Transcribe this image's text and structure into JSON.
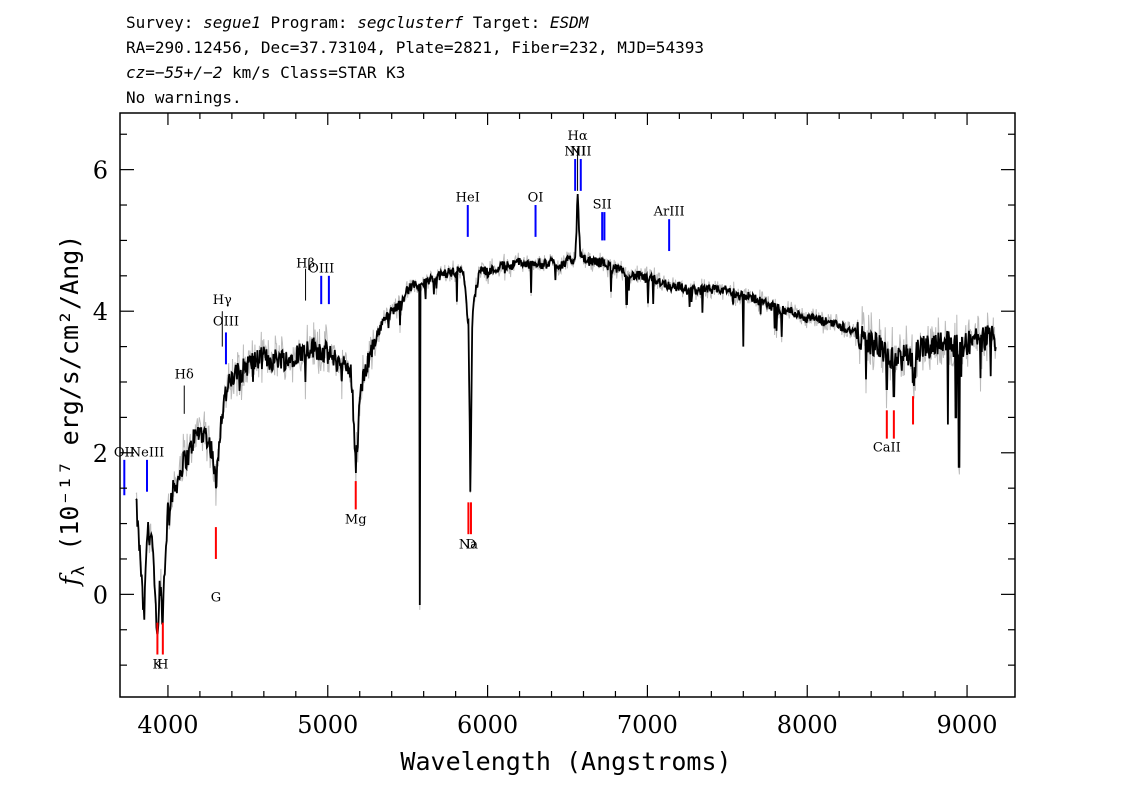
{
  "header": {
    "line1": {
      "survey_label": "Survey: ",
      "survey": "segue1",
      "program_label": " Program: ",
      "program": "segclusterf",
      "target_label": " Target: ",
      "target": "ESDM"
    },
    "line2": "RA=290.12456, Dec=37.73104, Plate=2821, Fiber=232, MJD=54393",
    "line3": {
      "cz_label": "cz",
      "cz_value": "=−55+/−2",
      "cz_rest": " km/s Class=STAR K3"
    },
    "line4": "No warnings."
  },
  "chart_data": {
    "type": "line",
    "title": "",
    "xlabel": "Wavelength (Angstroms)",
    "ylabel": "fλ (10⁻¹⁷ erg/s/cm²/Ang)",
    "xlim": [
      3700,
      9300
    ],
    "ylim": [
      -1.45,
      6.8
    ],
    "xticks": [
      4000,
      5000,
      6000,
      7000,
      8000,
      9000
    ],
    "yticks": [
      0,
      2,
      4,
      6
    ],
    "colors": {
      "flux": "#000000",
      "error": "#bbbbbb",
      "emission": "#0000ff",
      "absorption": "#ff0000",
      "balmer": "#000000"
    },
    "series": [
      {
        "points": [
          [
            3800,
            1.3
          ],
          [
            3830,
            0.4
          ],
          [
            3850,
            -0.4
          ],
          [
            3870,
            0.9
          ],
          [
            3900,
            0.8
          ],
          [
            3920,
            -0.1
          ],
          [
            3935,
            -0.6
          ],
          [
            3950,
            0.2
          ],
          [
            3965,
            -0.3
          ],
          [
            3985,
            0.6
          ],
          [
            4000,
            1.2
          ],
          [
            4030,
            1.45
          ],
          [
            4060,
            1.6
          ],
          [
            4100,
            1.9
          ],
          [
            4130,
            1.95
          ],
          [
            4160,
            2.2
          ],
          [
            4200,
            2.3
          ],
          [
            4240,
            2.25
          ],
          [
            4280,
            2.0
          ],
          [
            4300,
            1.5
          ],
          [
            4320,
            2.2
          ],
          [
            4350,
            2.75
          ],
          [
            4380,
            2.95
          ],
          [
            4420,
            3.1
          ],
          [
            4460,
            3.15
          ],
          [
            4500,
            3.25
          ],
          [
            4550,
            3.3
          ],
          [
            4600,
            3.35
          ],
          [
            4650,
            3.3
          ],
          [
            4700,
            3.35
          ],
          [
            4750,
            3.3
          ],
          [
            4800,
            3.4
          ],
          [
            4861,
            3.45
          ],
          [
            4900,
            3.5
          ],
          [
            4950,
            3.45
          ],
          [
            5000,
            3.4
          ],
          [
            5050,
            3.3
          ],
          [
            5100,
            3.25
          ],
          [
            5150,
            3.1
          ],
          [
            5175,
            1.8
          ],
          [
            5200,
            2.8
          ],
          [
            5250,
            3.3
          ],
          [
            5300,
            3.6
          ],
          [
            5350,
            3.9
          ],
          [
            5400,
            4.0
          ],
          [
            5450,
            4.1
          ],
          [
            5500,
            4.3
          ],
          [
            5550,
            4.4
          ],
          [
            5577,
            4.3
          ],
          [
            5600,
            4.4
          ],
          [
            5650,
            4.45
          ],
          [
            5700,
            4.5
          ],
          [
            5750,
            4.55
          ],
          [
            5800,
            4.55
          ],
          [
            5850,
            4.6
          ],
          [
            5880,
            3.8
          ],
          [
            5893,
            1.5
          ],
          [
            5905,
            4.0
          ],
          [
            5950,
            4.6
          ],
          [
            6000,
            4.55
          ],
          [
            6050,
            4.6
          ],
          [
            6100,
            4.65
          ],
          [
            6150,
            4.65
          ],
          [
            6200,
            4.7
          ],
          [
            6250,
            4.65
          ],
          [
            6300,
            4.7
          ],
          [
            6350,
            4.65
          ],
          [
            6400,
            4.7
          ],
          [
            6450,
            4.65
          ],
          [
            6500,
            4.7
          ],
          [
            6550,
            4.75
          ],
          [
            6563,
            5.7
          ],
          [
            6580,
            4.75
          ],
          [
            6650,
            4.7
          ],
          [
            6700,
            4.7
          ],
          [
            6750,
            4.65
          ],
          [
            6800,
            4.6
          ],
          [
            6850,
            4.55
          ],
          [
            6900,
            4.5
          ],
          [
            6950,
            4.5
          ],
          [
            7000,
            4.45
          ],
          [
            7050,
            4.45
          ],
          [
            7100,
            4.4
          ],
          [
            7150,
            4.35
          ],
          [
            7200,
            4.35
          ],
          [
            7250,
            4.3
          ],
          [
            7300,
            4.3
          ],
          [
            7350,
            4.3
          ],
          [
            7400,
            4.3
          ],
          [
            7450,
            4.3
          ],
          [
            7500,
            4.3
          ],
          [
            7550,
            4.25
          ],
          [
            7600,
            4.2
          ],
          [
            7650,
            4.2
          ],
          [
            7700,
            4.15
          ],
          [
            7750,
            4.1
          ],
          [
            7800,
            4.05
          ],
          [
            7850,
            4.0
          ],
          [
            7900,
            4.0
          ],
          [
            7950,
            3.95
          ],
          [
            8000,
            3.9
          ],
          [
            8050,
            3.9
          ],
          [
            8100,
            3.85
          ],
          [
            8150,
            3.85
          ],
          [
            8200,
            3.8
          ],
          [
            8250,
            3.75
          ],
          [
            8300,
            3.7
          ],
          [
            8350,
            3.6
          ],
          [
            8400,
            3.55
          ],
          [
            8450,
            3.5
          ],
          [
            8500,
            3.4
          ],
          [
            8550,
            3.3
          ],
          [
            8600,
            3.4
          ],
          [
            8650,
            3.3
          ],
          [
            8700,
            3.45
          ],
          [
            8750,
            3.5
          ],
          [
            8800,
            3.55
          ],
          [
            8850,
            3.6
          ],
          [
            8900,
            3.55
          ],
          [
            8950,
            3.5
          ],
          [
            9000,
            3.55
          ],
          [
            9050,
            3.6
          ],
          [
            9100,
            3.6
          ],
          [
            9150,
            3.65
          ],
          [
            9180,
            3.6
          ]
        ],
        "dips": [
          [
            5577,
            -0.15
          ],
          [
            5893,
            1.45
          ],
          [
            4300,
            1.5
          ],
          [
            3934,
            -0.55
          ],
          [
            3968,
            -0.4
          ],
          [
            8498,
            2.9
          ],
          [
            8542,
            2.8
          ],
          [
            8662,
            3.0
          ],
          [
            8950,
            1.8
          ],
          [
            8880,
            2.4
          ],
          [
            4861,
            3.0
          ],
          [
            7600,
            3.5
          ],
          [
            6870,
            4.1
          ],
          [
            8930,
            2.5
          ]
        ]
      }
    ],
    "line_markers": [
      {
        "label": "OII",
        "display": "OII",
        "wave": 3727,
        "kind": "emission",
        "y0": 1.4,
        "y1": 1.9,
        "label_y": 1.95
      },
      {
        "label": "NeIII",
        "display": "NeIII",
        "wave": 3869,
        "kind": "emission",
        "y0": 1.45,
        "y1": 1.9,
        "label_y": 1.95
      },
      {
        "label": "Hdelta",
        "display": "Hδ",
        "wave": 4102,
        "kind": "balmer",
        "y0": 2.55,
        "y1": 2.95,
        "label_y": 3.05
      },
      {
        "label": "Hgamma",
        "display": "Hγ",
        "wave": 4340,
        "kind": "balmer",
        "y0": 3.5,
        "y1": 4.0,
        "label_y": 4.1
      },
      {
        "label": "OIII",
        "display": "OIII",
        "wave": 4363,
        "kind": "emission",
        "y0": 3.25,
        "y1": 3.7,
        "label_y": 3.8
      },
      {
        "label": "Hbeta",
        "display": "Hβ",
        "wave": 4861,
        "kind": "balmer",
        "y0": 4.15,
        "y1": 4.6,
        "label_y": 4.62
      },
      {
        "label": "OIII",
        "display": "OIII",
        "wave": 4959,
        "kind": "emission",
        "y0": 4.1,
        "y1": 4.5,
        "label_y": 4.55
      },
      {
        "label": "OIII",
        "display": "",
        "wave": 5007,
        "kind": "emission",
        "y0": 4.1,
        "y1": 4.5,
        "label_y": 4.55
      },
      {
        "label": "HeI",
        "display": "HeI",
        "wave": 5876,
        "kind": "emission",
        "y0": 5.05,
        "y1": 5.5,
        "label_y": 5.55
      },
      {
        "label": "OI",
        "display": "OI",
        "wave": 6300,
        "kind": "emission",
        "y0": 5.05,
        "y1": 5.5,
        "label_y": 5.55
      },
      {
        "label": "NII",
        "display": "NII",
        "wave": 6548,
        "kind": "emission",
        "y0": 5.7,
        "y1": 6.15,
        "label_y": 6.2
      },
      {
        "label": "Halpha",
        "display": "Hα",
        "wave": 6563,
        "kind": "balmer",
        "y0": 5.7,
        "y1": 6.3,
        "label_y": 6.42
      },
      {
        "label": "NII",
        "display": "NII",
        "wave": 6583,
        "kind": "emission",
        "y0": 5.7,
        "y1": 6.15,
        "label_y": 6.2
      },
      {
        "label": "SII",
        "display": "SII",
        "wave": 6717,
        "kind": "emission",
        "y0": 5.0,
        "y1": 5.4,
        "label_y": 5.45
      },
      {
        "label": "SII",
        "display": "",
        "wave": 6731,
        "kind": "emission",
        "y0": 5.0,
        "y1": 5.4,
        "label_y": 5.45
      },
      {
        "label": "ArIII",
        "display": "ArIII",
        "wave": 7136,
        "kind": "emission",
        "y0": 4.85,
        "y1": 5.3,
        "label_y": 5.35
      },
      {
        "label": "K",
        "display": "K",
        "wave": 3934,
        "kind": "absorption",
        "y0": -0.85,
        "y1": -0.4,
        "label_y": -1.05
      },
      {
        "label": "H",
        "display": "H",
        "wave": 3968,
        "kind": "absorption",
        "y0": -0.85,
        "y1": -0.4,
        "label_y": -1.05
      },
      {
        "label": "G",
        "display": "G",
        "wave": 4300,
        "kind": "absorption",
        "y0": 0.5,
        "y1": 0.95,
        "label_y": -0.1
      },
      {
        "label": "Mg",
        "display": "Mg",
        "wave": 5175,
        "kind": "absorption",
        "y0": 1.2,
        "y1": 1.6,
        "label_y": 1.0
      },
      {
        "label": "Na",
        "display": "Na",
        "wave": 5880,
        "kind": "absorption",
        "y0": 0.85,
        "y1": 1.3,
        "label_y": 0.65
      },
      {
        "label": "D",
        "display": "D",
        "wave": 5896,
        "kind": "absorption",
        "y0": 0.85,
        "y1": 1.3,
        "label_y": 0.65
      },
      {
        "label": "CaII",
        "display": "CaII",
        "wave": 8498,
        "kind": "absorption",
        "y0": 2.2,
        "y1": 2.6,
        "label_y": 2.02
      },
      {
        "label": "CaII",
        "display": "",
        "wave": 8542,
        "kind": "absorption",
        "y0": 2.2,
        "y1": 2.6,
        "label_y": 2.02
      },
      {
        "label": "CaII",
        "display": "",
        "wave": 8662,
        "kind": "absorption",
        "y0": 2.4,
        "y1": 2.8,
        "label_y": 2.02
      }
    ]
  }
}
